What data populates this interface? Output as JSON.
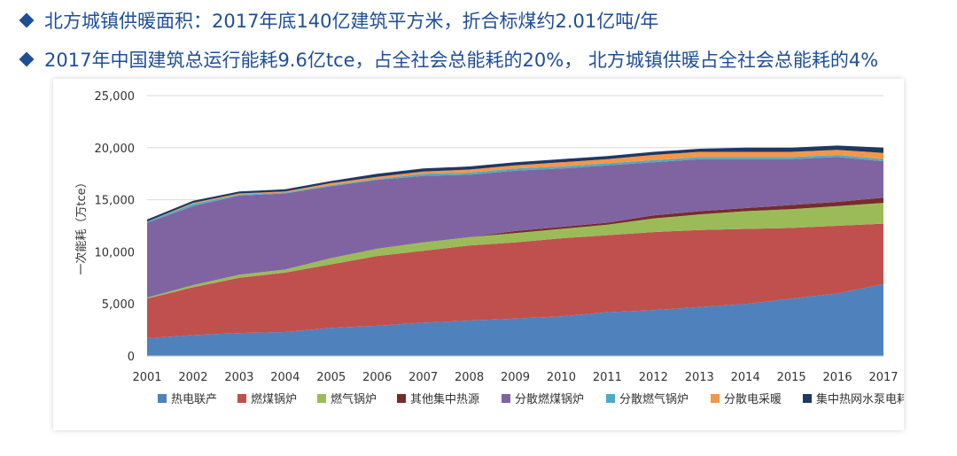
{
  "header": {
    "line1": "北方城镇供暖面积：2017年底140亿建筑平方米，折合标煤约2.01亿吨/年",
    "line2": "2017年中国建筑总运行能耗9.6亿tce，占全社会总能耗的20%， 北方城镇供暖占全社会总能耗的4%"
  },
  "chart_data": {
    "type": "area",
    "stacked": true,
    "ylabel": "一次能耗（万tce）",
    "xlabel": "",
    "ylim": [
      0,
      25000
    ],
    "yticks": [
      "0",
      "5,000",
      "10,000",
      "15,000",
      "20,000",
      "25,000"
    ],
    "ytick_values": [
      0,
      5000,
      10000,
      15000,
      20000,
      25000
    ],
    "grid": true,
    "legend_position": "bottom",
    "x": [
      "2001",
      "2002",
      "2003",
      "2004",
      "2005",
      "2006",
      "2007",
      "2008",
      "2009",
      "2010",
      "2011",
      "2012",
      "2013",
      "2014",
      "2015",
      "2016",
      "2017"
    ],
    "series": [
      {
        "name": "热电联产",
        "color": "#4f81bd",
        "values": [
          1700,
          2000,
          2200,
          2300,
          2700,
          2900,
          3200,
          3400,
          3600,
          3800,
          4200,
          4400,
          4700,
          5000,
          5500,
          6000,
          6900
        ]
      },
      {
        "name": "燃煤锅炉",
        "color": "#c0504d",
        "values": [
          3800,
          4600,
          5300,
          5700,
          6100,
          6700,
          6900,
          7200,
          7300,
          7500,
          7400,
          7500,
          7400,
          7200,
          6800,
          6500,
          5800
        ]
      },
      {
        "name": "燃气锅炉",
        "color": "#9bbb59",
        "values": [
          100,
          200,
          300,
          300,
          600,
          700,
          800,
          800,
          900,
          900,
          1000,
          1300,
          1500,
          1700,
          1800,
          1900,
          2000
        ]
      },
      {
        "name": "其他集中热源",
        "color": "#772c2a",
        "values": [
          0,
          0,
          0,
          0,
          0,
          0,
          0,
          0,
          200,
          200,
          200,
          300,
          300,
          300,
          400,
          400,
          500
        ]
      },
      {
        "name": "分散燃煤锅炉",
        "color": "#8064a2",
        "values": [
          7200,
          7600,
          7600,
          7300,
          6900,
          6600,
          6400,
          6000,
          5800,
          5600,
          5500,
          5100,
          5000,
          4700,
          4400,
          4300,
          3500
        ]
      },
      {
        "name": "分散燃气锅炉",
        "color": "#4bacc6",
        "values": [
          100,
          200,
          100,
          100,
          100,
          100,
          200,
          200,
          200,
          200,
          200,
          200,
          200,
          200,
          200,
          200,
          200
        ]
      },
      {
        "name": "分散电采暖",
        "color": "#f79646",
        "values": [
          0,
          100,
          100,
          100,
          200,
          200,
          200,
          300,
          300,
          400,
          400,
          500,
          500,
          500,
          500,
          500,
          600
        ]
      },
      {
        "name": "集中热网水泵电耗",
        "color": "#1f3864",
        "values": [
          200,
          200,
          200,
          200,
          200,
          300,
          300,
          300,
          300,
          300,
          300,
          300,
          300,
          400,
          400,
          400,
          500
        ]
      }
    ]
  }
}
